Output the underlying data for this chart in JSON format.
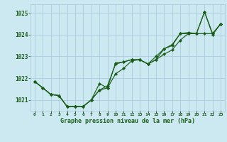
{
  "background_color": "#cce8f0",
  "grid_color": "#aaccdd",
  "line_color": "#1a5e1a",
  "marker_color": "#1a5e1a",
  "text_color": "#1a5e1a",
  "xlabel": "Graphe pression niveau de la mer (hPa)",
  "ylim": [
    1020.5,
    1025.4
  ],
  "xlim": [
    -0.5,
    23.5
  ],
  "yticks": [
    1021,
    1022,
    1023,
    1024,
    1025
  ],
  "xtick_labels": [
    "0",
    "1",
    "2",
    "3",
    "4",
    "5",
    "6",
    "7",
    "8",
    "9",
    "10",
    "11",
    "12",
    "13",
    "14",
    "15",
    "16",
    "17",
    "18",
    "19",
    "20",
    "21",
    "22",
    "23"
  ],
  "series1": [
    1021.85,
    1021.55,
    1021.25,
    1021.2,
    1020.7,
    1020.7,
    1020.7,
    1021.0,
    1021.75,
    1021.55,
    1022.7,
    1022.75,
    1022.85,
    1022.85,
    1022.65,
    1022.85,
    1023.35,
    1023.5,
    1024.05,
    1024.05,
    1024.05,
    1025.05,
    1024.0,
    1024.5
  ],
  "series2": [
    1021.85,
    1021.55,
    1021.25,
    1021.2,
    1020.7,
    1020.7,
    1020.7,
    1021.0,
    1021.45,
    1021.55,
    1022.2,
    1022.45,
    1022.8,
    1022.85,
    1022.65,
    1022.85,
    1023.1,
    1023.3,
    1023.75,
    1024.05,
    1024.05,
    1024.05,
    1024.05,
    1024.5
  ],
  "series3": [
    1021.85,
    1021.55,
    1021.25,
    1021.2,
    1020.7,
    1020.7,
    1020.7,
    1021.0,
    1021.45,
    1021.65,
    1022.65,
    1022.75,
    1022.85,
    1022.85,
    1022.65,
    1023.0,
    1023.35,
    1023.55,
    1024.05,
    1024.1,
    1024.05,
    1025.05,
    1024.05,
    1024.5
  ]
}
